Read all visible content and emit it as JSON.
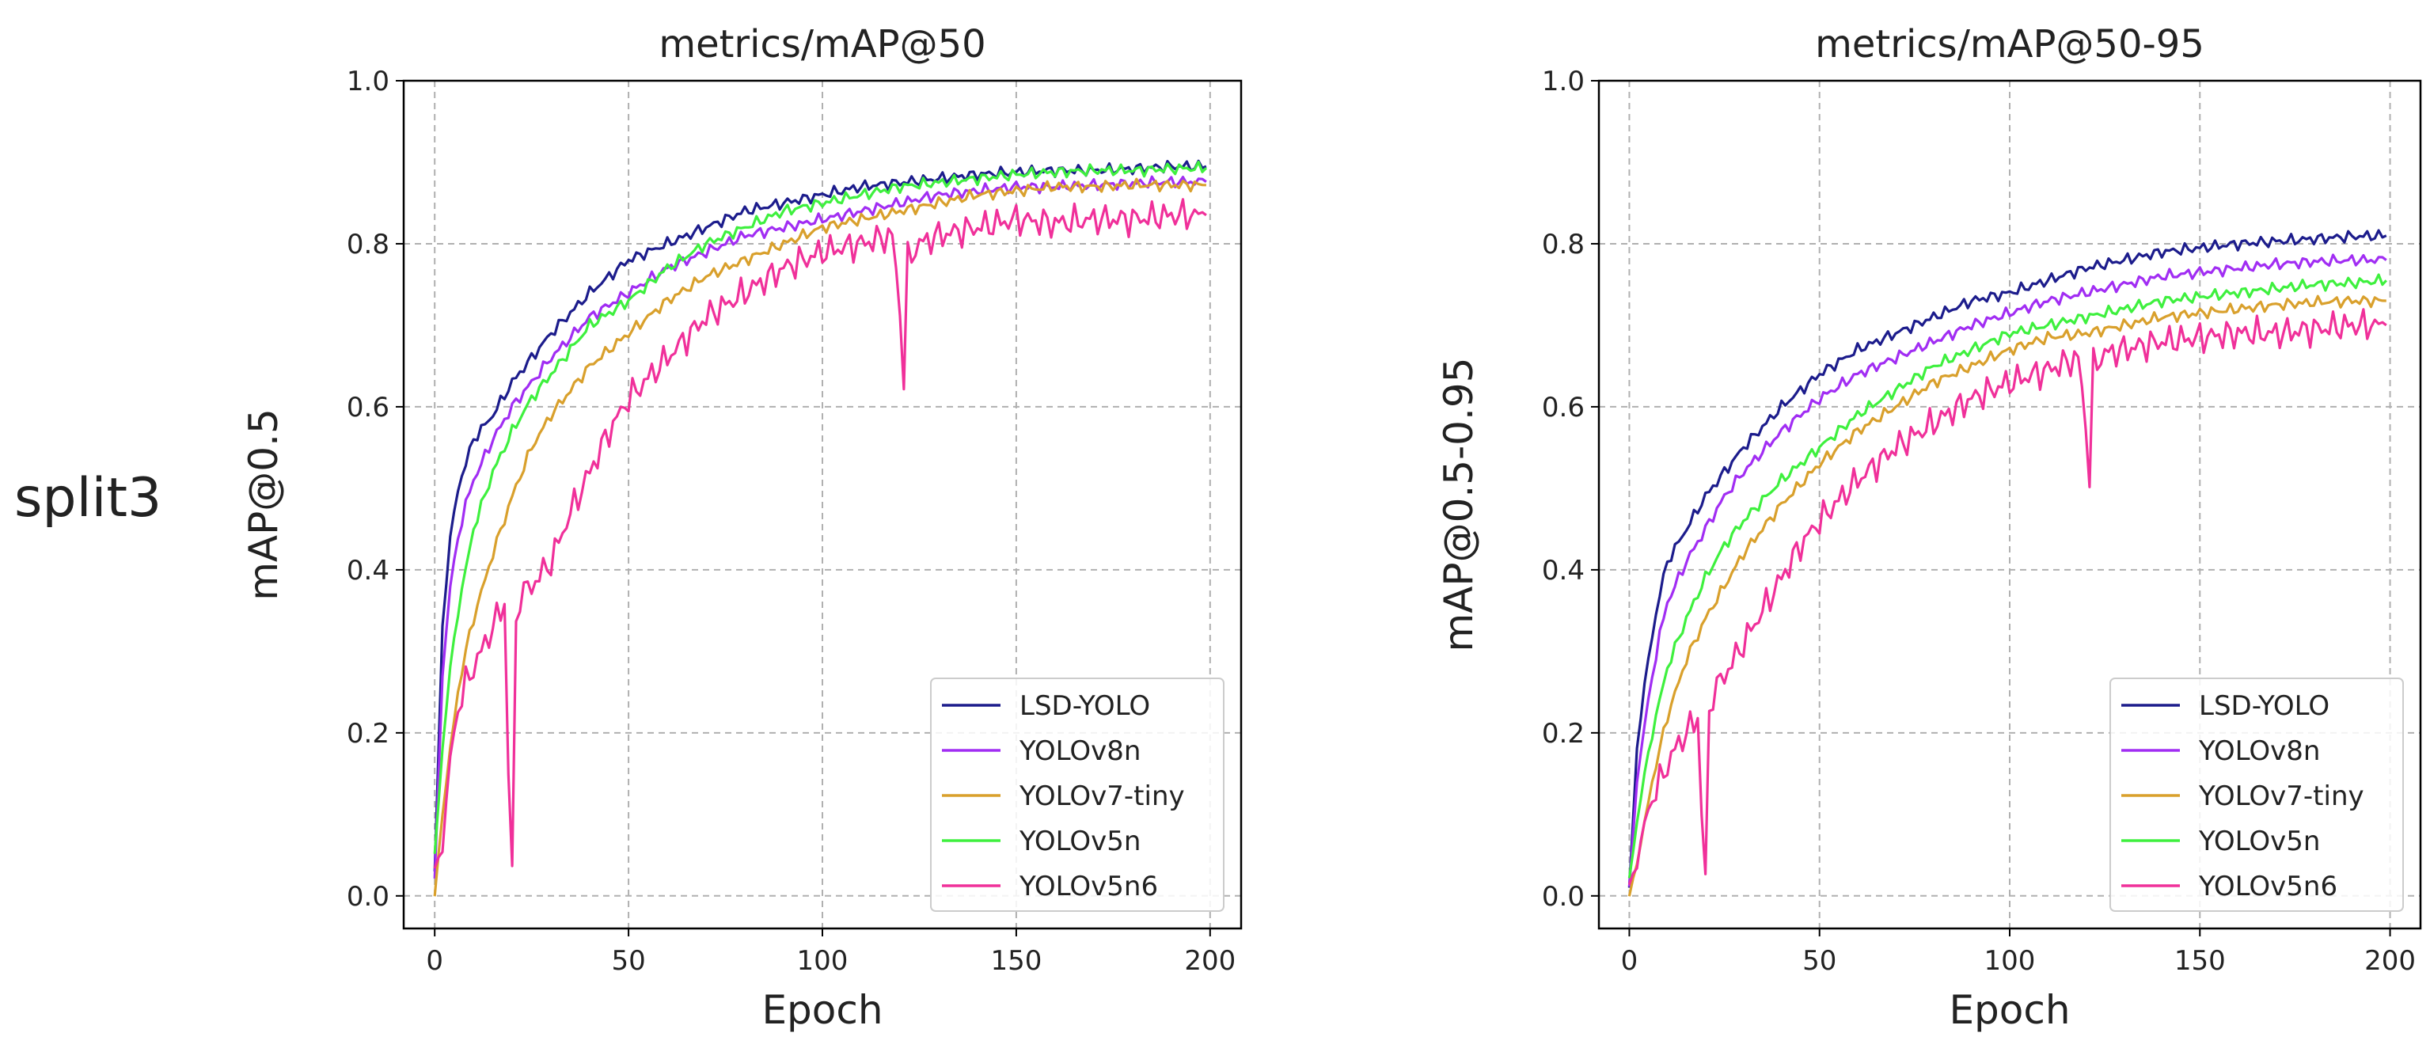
{
  "row_label": "split3",
  "chart_data": [
    {
      "type": "line",
      "title": "metrics/mAP@50",
      "xlabel": "Epoch",
      "ylabel": "mAP@0.5",
      "xlim": [
        -8,
        208
      ],
      "ylim": [
        -0.04,
        1.0
      ],
      "xticks": [
        0,
        50,
        100,
        150,
        200
      ],
      "yticks": [
        0.0,
        0.2,
        0.4,
        0.6,
        0.8,
        1.0
      ],
      "ytick_labels": [
        "0.0",
        "0.2",
        "0.4",
        "0.6",
        "0.8",
        "1.0"
      ],
      "grid": true,
      "legend_position": "lower-right",
      "series": [
        {
          "name": "LSD-YOLO",
          "color": "#1c1c8c",
          "x": [
            0,
            2,
            4,
            6,
            8,
            10,
            15,
            20,
            25,
            30,
            40,
            50,
            60,
            70,
            80,
            90,
            100,
            110,
            120,
            130,
            140,
            150,
            160,
            170,
            180,
            190,
            199
          ],
          "values": [
            0.03,
            0.33,
            0.44,
            0.5,
            0.53,
            0.56,
            0.59,
            0.63,
            0.66,
            0.69,
            0.74,
            0.78,
            0.8,
            0.82,
            0.84,
            0.85,
            0.86,
            0.87,
            0.875,
            0.88,
            0.885,
            0.888,
            0.89,
            0.89,
            0.892,
            0.895,
            0.895
          ]
        },
        {
          "name": "YOLOv8n",
          "color": "#a12df3",
          "x": [
            0,
            2,
            4,
            6,
            8,
            10,
            15,
            20,
            25,
            30,
            40,
            50,
            60,
            70,
            80,
            90,
            100,
            110,
            120,
            130,
            140,
            150,
            160,
            170,
            180,
            190,
            199
          ],
          "values": [
            0.02,
            0.27,
            0.38,
            0.44,
            0.48,
            0.51,
            0.56,
            0.6,
            0.63,
            0.66,
            0.71,
            0.74,
            0.77,
            0.79,
            0.81,
            0.82,
            0.83,
            0.84,
            0.85,
            0.86,
            0.865,
            0.87,
            0.87,
            0.872,
            0.874,
            0.876,
            0.876
          ]
        },
        {
          "name": "YOLOv7-tiny",
          "color": "#d9a02c",
          "x": [
            0,
            2,
            4,
            6,
            8,
            10,
            15,
            20,
            25,
            30,
            40,
            50,
            60,
            70,
            80,
            90,
            100,
            110,
            120,
            130,
            140,
            150,
            160,
            170,
            180,
            190,
            199
          ],
          "values": [
            0.0,
            0.1,
            0.18,
            0.25,
            0.3,
            0.34,
            0.42,
            0.49,
            0.55,
            0.59,
            0.65,
            0.69,
            0.73,
            0.76,
            0.78,
            0.8,
            0.82,
            0.83,
            0.84,
            0.85,
            0.86,
            0.865,
            0.87,
            0.87,
            0.872,
            0.872,
            0.872
          ]
        },
        {
          "name": "YOLOv5n",
          "color": "#3ef03e",
          "x": [
            0,
            2,
            4,
            6,
            8,
            10,
            15,
            20,
            25,
            30,
            40,
            50,
            60,
            70,
            80,
            90,
            100,
            110,
            120,
            130,
            140,
            150,
            160,
            170,
            180,
            190,
            199
          ],
          "values": [
            0.05,
            0.18,
            0.28,
            0.35,
            0.4,
            0.45,
            0.52,
            0.57,
            0.61,
            0.64,
            0.7,
            0.73,
            0.77,
            0.8,
            0.82,
            0.84,
            0.85,
            0.86,
            0.87,
            0.875,
            0.88,
            0.885,
            0.888,
            0.89,
            0.89,
            0.892,
            0.893
          ]
        },
        {
          "name": "YOLOv5n6",
          "color": "#f0309a",
          "x": [
            0,
            2,
            4,
            6,
            8,
            10,
            12,
            15,
            18,
            19,
            20,
            21,
            22,
            25,
            30,
            35,
            40,
            45,
            50,
            60,
            70,
            80,
            90,
            100,
            110,
            118,
            120,
            121,
            122,
            125,
            130,
            140,
            150,
            160,
            170,
            180,
            190,
            199
          ],
          "values": [
            0.03,
            0.06,
            0.17,
            0.23,
            0.26,
            0.28,
            0.3,
            0.33,
            0.36,
            0.15,
            0.03,
            0.33,
            0.37,
            0.38,
            0.41,
            0.47,
            0.52,
            0.57,
            0.61,
            0.66,
            0.71,
            0.74,
            0.77,
            0.79,
            0.8,
            0.81,
            0.72,
            0.63,
            0.78,
            0.8,
            0.81,
            0.82,
            0.83,
            0.825,
            0.83,
            0.83,
            0.835,
            0.835
          ]
        }
      ]
    },
    {
      "type": "line",
      "title": "metrics/mAP@50-95",
      "xlabel": "Epoch",
      "ylabel": "mAP@0.5-0.95",
      "xlim": [
        -8,
        208
      ],
      "ylim": [
        -0.04,
        1.0
      ],
      "xticks": [
        0,
        50,
        100,
        150,
        200
      ],
      "yticks": [
        0.0,
        0.2,
        0.4,
        0.6,
        0.8,
        1.0
      ],
      "ytick_labels": [
        "0.0",
        "0.2",
        "0.4",
        "0.6",
        "0.8",
        "1.0"
      ],
      "grid": true,
      "legend_position": "lower-right",
      "series": [
        {
          "name": "LSD-YOLO",
          "color": "#1c1c8c",
          "x": [
            0,
            2,
            4,
            6,
            8,
            10,
            15,
            20,
            25,
            30,
            40,
            50,
            60,
            70,
            80,
            90,
            100,
            110,
            120,
            130,
            140,
            150,
            160,
            170,
            180,
            190,
            199
          ],
          "values": [
            0.01,
            0.18,
            0.26,
            0.32,
            0.37,
            0.41,
            0.45,
            0.49,
            0.52,
            0.55,
            0.6,
            0.64,
            0.67,
            0.69,
            0.71,
            0.73,
            0.74,
            0.755,
            0.77,
            0.78,
            0.79,
            0.795,
            0.8,
            0.803,
            0.806,
            0.809,
            0.81
          ]
        },
        {
          "name": "YOLOv8n",
          "color": "#a12df3",
          "x": [
            0,
            2,
            4,
            6,
            8,
            10,
            15,
            20,
            25,
            30,
            40,
            50,
            60,
            70,
            80,
            90,
            100,
            110,
            120,
            130,
            140,
            150,
            160,
            170,
            180,
            190,
            199
          ],
          "values": [
            0.01,
            0.14,
            0.21,
            0.27,
            0.32,
            0.36,
            0.41,
            0.45,
            0.49,
            0.52,
            0.57,
            0.61,
            0.64,
            0.66,
            0.68,
            0.7,
            0.715,
            0.73,
            0.74,
            0.75,
            0.76,
            0.765,
            0.77,
            0.775,
            0.778,
            0.78,
            0.78
          ]
        },
        {
          "name": "YOLOv7-tiny",
          "color": "#d9a02c",
          "x": [
            0,
            2,
            4,
            6,
            8,
            10,
            15,
            20,
            25,
            30,
            40,
            50,
            60,
            70,
            80,
            90,
            100,
            110,
            120,
            130,
            140,
            150,
            160,
            170,
            180,
            190,
            199
          ],
          "values": [
            0.0,
            0.04,
            0.09,
            0.14,
            0.18,
            0.22,
            0.29,
            0.34,
            0.38,
            0.42,
            0.48,
            0.53,
            0.57,
            0.6,
            0.63,
            0.65,
            0.67,
            0.685,
            0.69,
            0.7,
            0.71,
            0.715,
            0.72,
            0.725,
            0.728,
            0.73,
            0.73
          ]
        },
        {
          "name": "YOLOv5n",
          "color": "#3ef03e",
          "x": [
            0,
            2,
            4,
            6,
            8,
            10,
            15,
            20,
            25,
            30,
            40,
            50,
            60,
            70,
            80,
            90,
            100,
            110,
            120,
            130,
            140,
            150,
            160,
            170,
            180,
            190,
            199
          ],
          "values": [
            0.02,
            0.09,
            0.15,
            0.2,
            0.24,
            0.28,
            0.34,
            0.39,
            0.43,
            0.46,
            0.51,
            0.55,
            0.59,
            0.62,
            0.65,
            0.67,
            0.69,
            0.7,
            0.71,
            0.72,
            0.73,
            0.735,
            0.74,
            0.745,
            0.75,
            0.752,
            0.755
          ]
        },
        {
          "name": "YOLOv5n6",
          "color": "#f0309a",
          "x": [
            0,
            2,
            4,
            6,
            8,
            10,
            12,
            15,
            18,
            19,
            20,
            21,
            22,
            25,
            30,
            35,
            40,
            45,
            50,
            60,
            70,
            80,
            90,
            100,
            110,
            118,
            120,
            121,
            122,
            125,
            130,
            140,
            150,
            160,
            170,
            180,
            190,
            199
          ],
          "values": [
            0.01,
            0.04,
            0.09,
            0.12,
            0.14,
            0.16,
            0.18,
            0.2,
            0.22,
            0.1,
            0.02,
            0.22,
            0.25,
            0.27,
            0.31,
            0.35,
            0.39,
            0.43,
            0.46,
            0.51,
            0.55,
            0.58,
            0.61,
            0.63,
            0.645,
            0.66,
            0.58,
            0.51,
            0.65,
            0.665,
            0.67,
            0.68,
            0.685,
            0.69,
            0.69,
            0.695,
            0.7,
            0.7
          ]
        }
      ]
    }
  ]
}
